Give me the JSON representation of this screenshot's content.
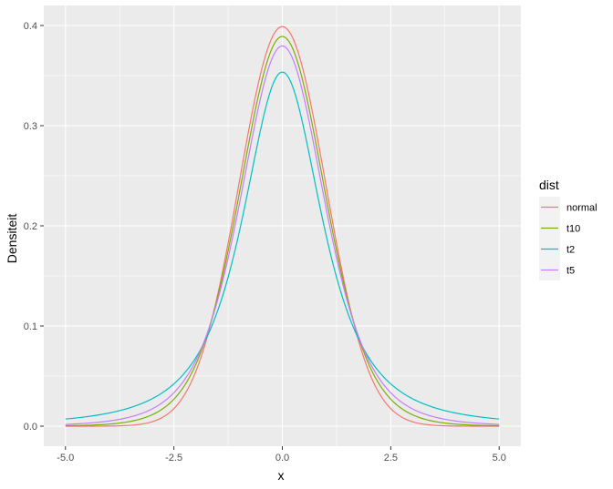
{
  "chart_data": {
    "type": "line",
    "xlabel": "x",
    "ylabel": "Densiteit",
    "xlim": [
      -5.5,
      5.5
    ],
    "ylim": [
      -0.02,
      0.42
    ],
    "x_ticks": [
      -5,
      -2.5,
      0,
      2.5,
      5
    ],
    "x_tick_labels": [
      "-5.0",
      "-2.5",
      "0.0",
      "2.5",
      "5.0"
    ],
    "y_ticks": [
      0,
      0.1,
      0.2,
      0.3,
      0.4
    ],
    "y_tick_labels": [
      "0.0",
      "0.1",
      "0.2",
      "0.3",
      "0.4"
    ],
    "grid": true,
    "legend": {
      "title": "dist",
      "position": "right"
    },
    "x_range": [
      -5,
      5
    ],
    "series": [
      {
        "name": "normal",
        "color": "#F8766D",
        "distribution": "normal"
      },
      {
        "name": "t10",
        "color": "#7CAE00",
        "distribution": "t",
        "df": 10
      },
      {
        "name": "t2",
        "color": "#00BFC4",
        "distribution": "t",
        "df": 2
      },
      {
        "name": "t5",
        "color": "#C77CFF",
        "distribution": "t",
        "df": 5
      }
    ]
  }
}
